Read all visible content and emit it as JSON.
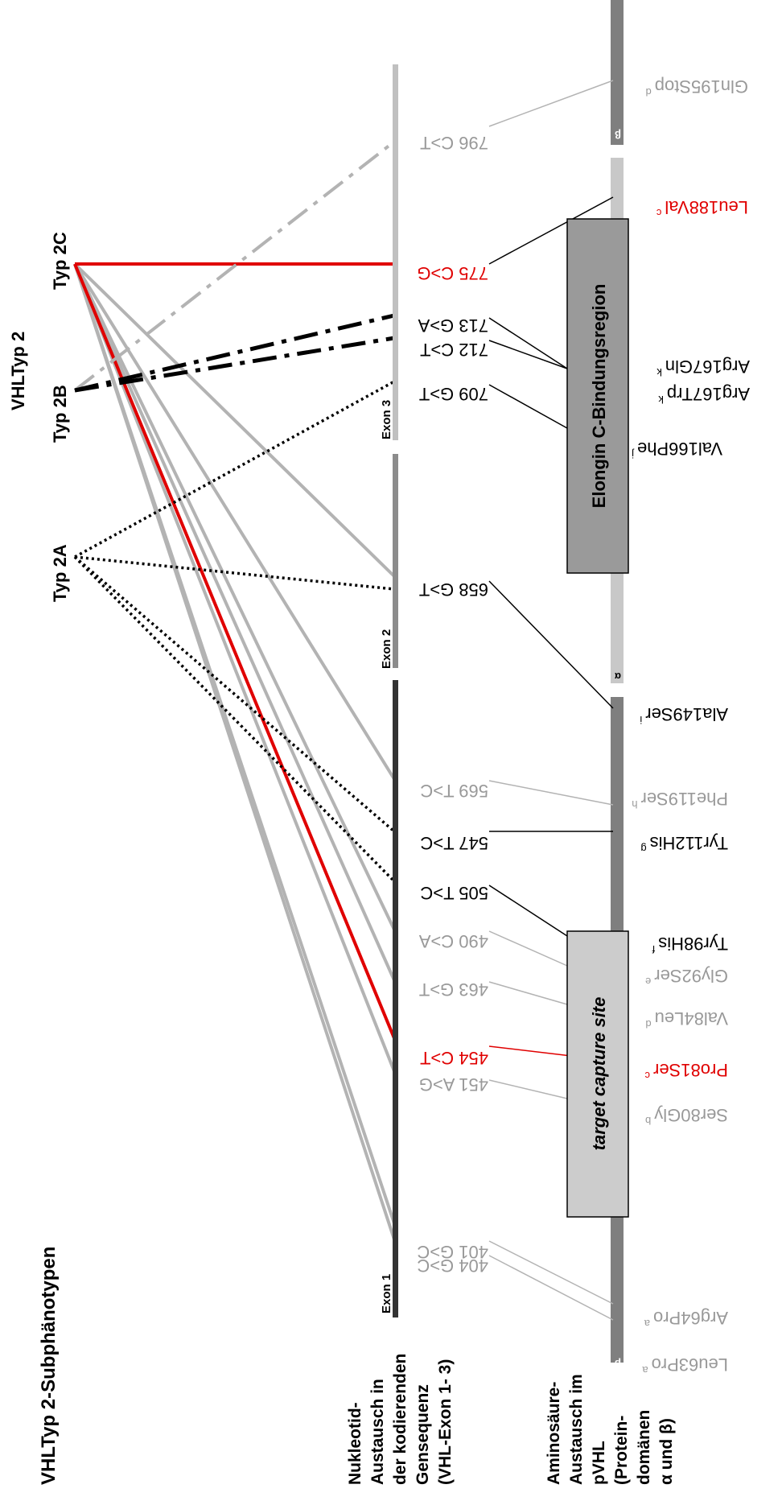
{
  "figure": {
    "main_title": "VHLTyp 2-Subphänotypen",
    "group_title": "VHLTyp 2",
    "types": {
      "t2a": "Typ 2A",
      "t2b": "Typ 2B",
      "t2c": "Typ 2C"
    },
    "row1_label": [
      "Nukleotid-",
      "Austausch in",
      "der kodierenden",
      "Gensequenz",
      "(VHL-Exon 1- 3)"
    ],
    "row2_label": [
      "Aminosäure-",
      "Austausch im",
      "pVHL",
      "(Protein-",
      "domänen",
      "α und β)"
    ],
    "exons": {
      "exon1": "Exon 1",
      "exon2": "Exon 2",
      "exon3": "Exon 3"
    },
    "domains": {
      "alpha": "α",
      "beta_left": "β",
      "beta_right": "β"
    },
    "boxes": {
      "target": "target capture site",
      "elongin": "Elongin C-Bindungsregion"
    },
    "nucleotides": {
      "n401": "401 G>C",
      "n404": "404 G>C",
      "n451": "451 A>G",
      "n454": "454 C>T",
      "n463": "463 G>T",
      "n490": "490 C>A",
      "n505": "505 T>C",
      "n547": "547 T>C",
      "n569": "569 T>C",
      "n658": "658 G>T",
      "n709": "709 G>T",
      "n712": "712 C>T",
      "n713": "713 G>A",
      "n775": "775 C>G",
      "n796": "796 C>T"
    },
    "amino_acids": {
      "a_leu63": "Leu63Pro",
      "a_arg64": "Arg64Pro",
      "a_ser80": "Ser80Gly",
      "a_pro81": "Pro81Ser",
      "a_val84": "Val84Leu",
      "a_gly92": "Gly92Ser",
      "a_tyr98": "Tyr98His",
      "a_tyr112": "Tyr112His",
      "a_phe119": "Phe119Ser",
      "a_ala149": "Ala149Ser",
      "a_val166": "Val166Phe",
      "a_arg167trp": "Arg167Trp",
      "a_arg167gln": "Arg167Gln",
      "a_leu188": "Leu188Val",
      "a_gln195": "Gln195Stop"
    },
    "superscripts": {
      "s_leu63": "a",
      "s_arg64": "a",
      "s_ser80": "b",
      "s_pro81": "c",
      "s_val84": "d",
      "s_gly92": "e",
      "s_tyr98": "f",
      "s_tyr112": "g",
      "s_phe119": "h",
      "s_ala149": "i",
      "s_val166": "j",
      "s_arg167trp": "k",
      "s_arg167gln": "k",
      "s_leu188": "c",
      "s_gln195": "d"
    },
    "colors": {
      "black": "#000000",
      "grey": "#b3b3b3",
      "red": "#e00000",
      "exon1": "#333333",
      "exon2": "#8c8c8c",
      "exon3": "#c0c0c0",
      "protein": "#7f7f7f",
      "target_box": "#cccccc",
      "elongin_box": "#9a9a9a"
    }
  }
}
